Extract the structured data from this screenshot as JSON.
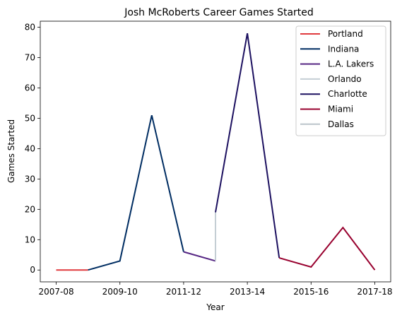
{
  "chart_data": {
    "type": "line",
    "title": "Josh McRoberts Career Games Started",
    "xlabel": "Year",
    "ylabel": "Games Started",
    "x_ticks": [
      "2007-08",
      "2009-10",
      "2011-12",
      "2013-14",
      "2015-16",
      "2017-18"
    ],
    "y_ticks": [
      0,
      10,
      20,
      30,
      40,
      50,
      60,
      70,
      80
    ],
    "xlim": [
      -0.5,
      10.5
    ],
    "ylim": [
      -3.9,
      82
    ],
    "legend": "top-right",
    "series": [
      {
        "name": "Portland",
        "color": "#e03a3e",
        "x": [
          0,
          1
        ],
        "y": [
          0,
          0
        ]
      },
      {
        "name": "Indiana",
        "color": "#002d62",
        "x": [
          1,
          2,
          3,
          4
        ],
        "y": [
          0,
          3,
          51,
          6
        ]
      },
      {
        "name": "L.A. Lakers",
        "color": "#552583",
        "x": [
          4,
          5
        ],
        "y": [
          6,
          3
        ]
      },
      {
        "name": "Orlando",
        "color": "#c4ced4",
        "x": [
          5,
          5
        ],
        "y": [
          3,
          19
        ]
      },
      {
        "name": "Charlotte",
        "color": "#1d1160",
        "x": [
          5,
          6,
          7
        ],
        "y": [
          19,
          78,
          4
        ]
      },
      {
        "name": "Miami",
        "color": "#98002e",
        "x": [
          7,
          8,
          9,
          10
        ],
        "y": [
          4,
          1,
          14,
          0
        ]
      },
      {
        "name": "Dallas",
        "color": "#bbc4ca",
        "x": [
          10,
          10
        ],
        "y": [
          0,
          0
        ]
      }
    ]
  }
}
